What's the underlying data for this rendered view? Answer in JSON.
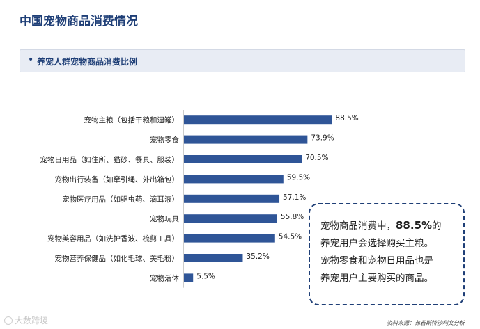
{
  "header": {
    "title": "中国宠物商品消费情况"
  },
  "section": {
    "bullet": "•",
    "label": "养宠人群宠物商品消费比例"
  },
  "chart_data": {
    "type": "bar",
    "orientation": "horizontal",
    "categories": [
      "宠物主粮（包括干粮和湿罐）",
      "宠物零食",
      "宠物日用品（如住所、猫砂、餐具、服装）",
      "宠物出行装备（如牵引绳、外出箱包）",
      "宠物医疗用品（如驱虫药、滴耳液）",
      "宠物玩具",
      "宠物美容用品（如洗护香波、梳剪工具）",
      "宠物营养保健品（如化毛球、美毛粉）",
      "宠物活体"
    ],
    "values": [
      88.5,
      73.9,
      70.5,
      59.5,
      57.1,
      55.8,
      54.5,
      35.2,
      5.5
    ],
    "value_labels": [
      "88.5%",
      "73.9%",
      "70.5%",
      "59.5%",
      "57.1%",
      "55.8%",
      "54.5%",
      "35.2%",
      "5.5%"
    ],
    "unit": "%",
    "xlim": [
      0,
      100
    ],
    "bar_color": "#2f5597",
    "grid": false,
    "legend": "none"
  },
  "callout": {
    "line1_pre": "宠物商品消费中，",
    "line1_highlight": "88.5%",
    "line1_post": "的",
    "line2": "养宠用户会选择购买主粮。",
    "line3": "宠物零食和宠物日用品也是",
    "line4": "养宠用户主要购买的商品。"
  },
  "footer": {
    "watermark": "大数跨境",
    "source": "资料来源：弗若斯特沙利文分析"
  }
}
